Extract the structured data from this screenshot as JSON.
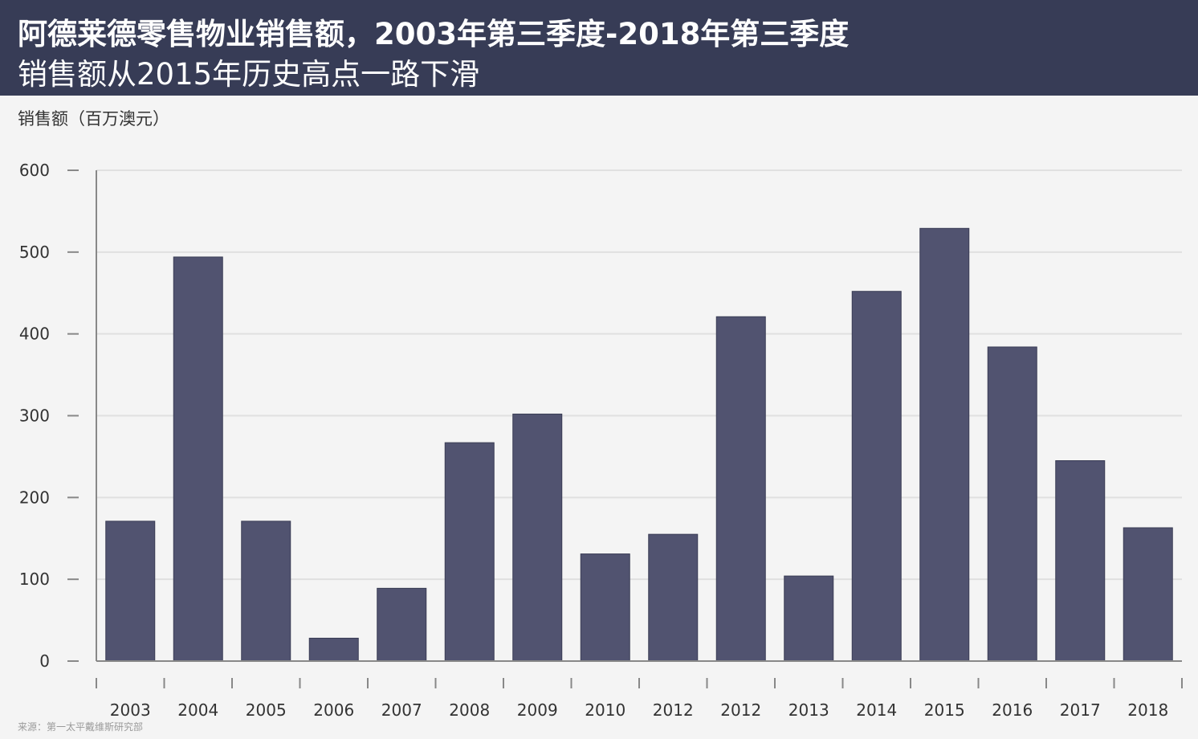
{
  "header": {
    "title": "阿德莱德零售物业销售额，2003年第三季度-2018年第三季度",
    "subtitle": "销售额从2015年历史高点一路下滑"
  },
  "source": "来源：第一太平戴维斯研究部",
  "colors": {
    "header_bg": "#373c56",
    "bar": "#515370",
    "background": "#f4f4f4",
    "gridline": "#e0e0e0",
    "axis": "#888888"
  },
  "chart_data": {
    "type": "bar",
    "title": "阿德莱德零售物业销售额，2003年第三季度-2018年第三季度",
    "subtitle": "销售额从2015年历史高点一路下滑",
    "ylabel": "销售额（百万澳元）",
    "xlabel": "",
    "ylim": [
      0,
      600
    ],
    "yticks": [
      0,
      100,
      200,
      300,
      400,
      500,
      600
    ],
    "grid": true,
    "categories": [
      "2003",
      "2004",
      "2005",
      "2006",
      "2007",
      "2008",
      "2009",
      "2010",
      "2012",
      "2012",
      "2013",
      "2014",
      "2015",
      "2016",
      "2017",
      "2018"
    ],
    "values": [
      171,
      494,
      171,
      28,
      89,
      267,
      302,
      131,
      155,
      421,
      104,
      452,
      529,
      384,
      245,
      163
    ]
  }
}
